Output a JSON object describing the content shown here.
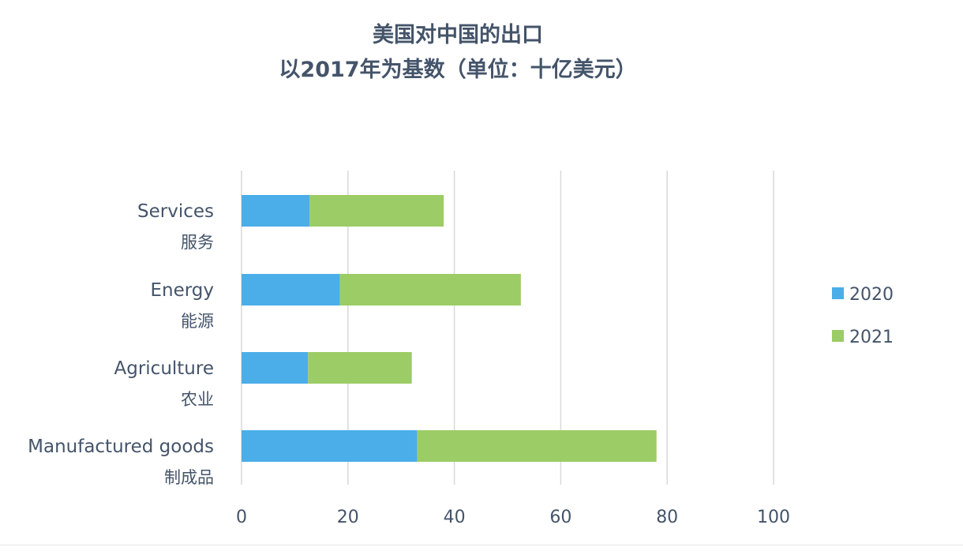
{
  "chart_data": {
    "type": "bar",
    "orientation": "horizontal",
    "stacked": true,
    "title": "美国对中国的出口",
    "subtitle": "以2017年为基数（单位：十亿美元）",
    "categories": [
      {
        "en": "Services",
        "zh": "服务"
      },
      {
        "en": "Energy",
        "zh": "能源"
      },
      {
        "en": "Agriculture",
        "zh": "农业"
      },
      {
        "en": "Manufactured goods",
        "zh": "制成品"
      }
    ],
    "series": [
      {
        "name": "2020",
        "color": "#4baee8",
        "values": [
          12.8,
          18.5,
          12.5,
          33
        ]
      },
      {
        "name": "2021",
        "color": "#9ccc65",
        "values": [
          25.2,
          34,
          19.5,
          45
        ]
      }
    ],
    "xlim": [
      0,
      100
    ],
    "xticks": [
      0,
      20,
      40,
      60,
      80,
      100
    ],
    "grid": true,
    "legend_position": "right"
  }
}
